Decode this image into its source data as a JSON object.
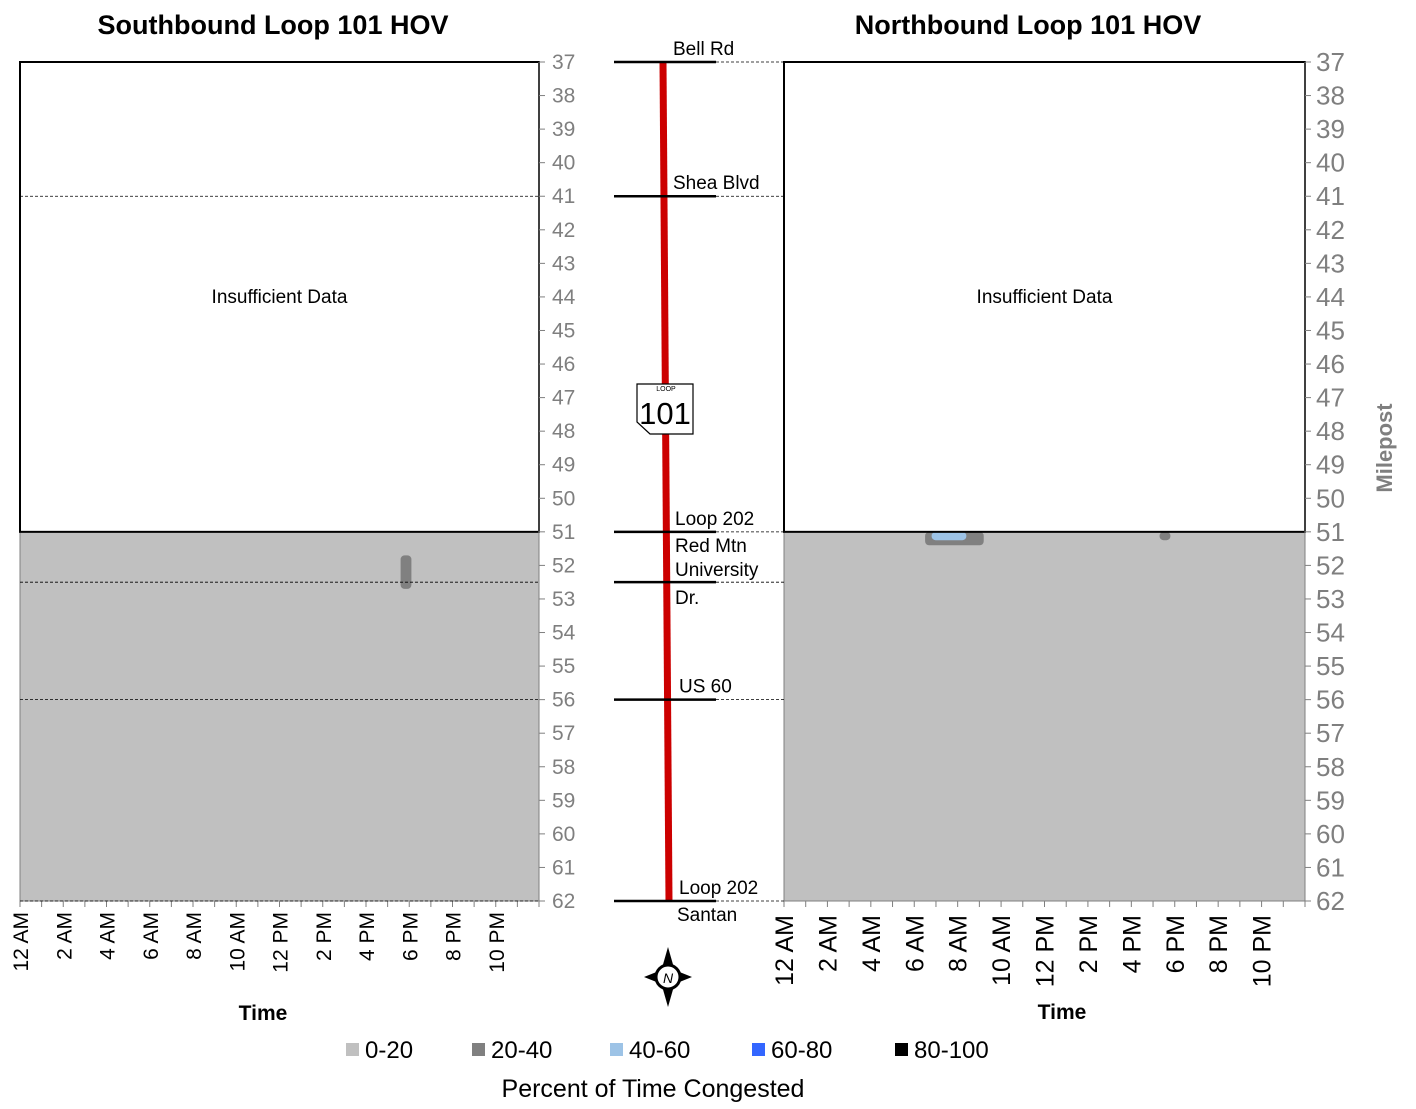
{
  "chart_data": [
    {
      "type": "heatmap",
      "title": "Southbound Loop 101 HOV",
      "xlabel": "Time",
      "ylabel": "",
      "x_ticks": [
        "12 AM",
        "2 AM",
        "4 AM",
        "6 AM",
        "8 AM",
        "10 AM",
        "12 PM",
        "2 PM",
        "4 PM",
        "6 PM",
        "8 PM",
        "10 PM"
      ],
      "y_range": [
        37,
        62
      ],
      "y_ticks": [
        37,
        38,
        39,
        40,
        41,
        42,
        43,
        44,
        45,
        46,
        47,
        48,
        49,
        50,
        51,
        52,
        53,
        54,
        55,
        56,
        57,
        58,
        59,
        60,
        61,
        62
      ],
      "x_range_hours": [
        0,
        24
      ],
      "insufficient_data": {
        "label": "Insufficient Data",
        "milepost_from": 37,
        "milepost_to": 51
      },
      "background_category": "0-20",
      "hotspots": [
        {
          "category": "20-40",
          "time_from_hours": 17.6,
          "time_to_hours": 18.1,
          "milepost_from": 51.7,
          "milepost_to": 52.7
        }
      ]
    },
    {
      "type": "heatmap",
      "title": "Northbound Loop 101 HOV",
      "xlabel": "Time",
      "ylabel": "Milepost",
      "x_ticks": [
        "12 AM",
        "2 AM",
        "4 AM",
        "6 AM",
        "8 AM",
        "10 AM",
        "12 PM",
        "2 PM",
        "4 PM",
        "6 PM",
        "8 PM",
        "10 PM"
      ],
      "y_range": [
        37,
        62
      ],
      "y_ticks": [
        37,
        38,
        39,
        40,
        41,
        42,
        43,
        44,
        45,
        46,
        47,
        48,
        49,
        50,
        51,
        52,
        53,
        54,
        55,
        56,
        57,
        58,
        59,
        60,
        61,
        62
      ],
      "x_range_hours": [
        0,
        24
      ],
      "insufficient_data": {
        "label": "Insufficient Data",
        "milepost_from": 37,
        "milepost_to": 51
      },
      "background_category": "0-20",
      "hotspots": [
        {
          "category": "20-40",
          "time_from_hours": 6.5,
          "time_to_hours": 9.2,
          "milepost_from": 51.0,
          "milepost_to": 51.4
        },
        {
          "category": "40-60",
          "time_from_hours": 6.8,
          "time_to_hours": 8.4,
          "milepost_from": 51.0,
          "milepost_to": 51.25
        },
        {
          "category": "20-40",
          "time_from_hours": 17.3,
          "time_to_hours": 17.8,
          "milepost_from": 51.0,
          "milepost_to": 51.25
        }
      ]
    }
  ],
  "landmarks": [
    {
      "label": "Bell Rd",
      "milepost": 37
    },
    {
      "label": "Shea Blvd",
      "milepost": 41
    },
    {
      "label": "Loop 202",
      "label2": "Red Mtn",
      "milepost": 51
    },
    {
      "label": "University",
      "label2": "Dr.",
      "milepost": 52.5
    },
    {
      "label": "US 60",
      "milepost": 56
    },
    {
      "label": "Loop 202",
      "label2": "Santan",
      "milepost": 62
    }
  ],
  "shield": {
    "top": "LOOP",
    "number": "101"
  },
  "compass": {
    "letter": "N"
  },
  "legend": {
    "title": "Percent of Time Congested",
    "items": [
      {
        "label": "0-20",
        "color": "#c0c0c0"
      },
      {
        "label": "20-40",
        "color": "#808080"
      },
      {
        "label": "40-60",
        "color": "#9dc3e6"
      },
      {
        "label": "60-80",
        "color": "#3366ff"
      },
      {
        "label": "80-100",
        "color": "#000000"
      }
    ]
  },
  "colors": {
    "route_line": "#cc0000"
  }
}
